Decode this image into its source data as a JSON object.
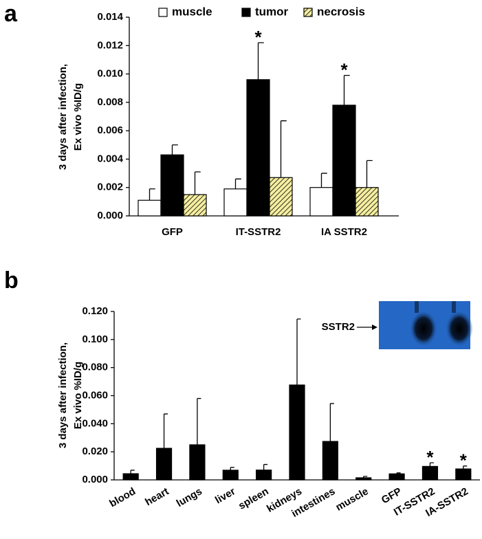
{
  "chart_data": [
    {
      "type": "bar",
      "panel_label": "a",
      "ylabel": [
        "3 days after infection,",
        "Ex vivo %ID/g"
      ],
      "categories": [
        "GFP",
        "IT-SSTR2",
        "IA SSTR2"
      ],
      "series": [
        {
          "name": "muscle",
          "color": "#ffffff",
          "values": [
            0.0011,
            0.0019,
            0.002
          ],
          "errors": [
            0.0008,
            0.0007,
            0.001
          ]
        },
        {
          "name": "tumor",
          "color": "#000000",
          "values": [
            0.0043,
            0.0096,
            0.0078
          ],
          "errors": [
            0.0007,
            0.0026,
            0.0021
          ]
        },
        {
          "name": "necrosis",
          "color": "#f5eea0",
          "hatch": true,
          "values": [
            0.0015,
            0.0027,
            0.002
          ],
          "errors": [
            0.0016,
            0.004,
            0.0019
          ]
        }
      ],
      "ylim": [
        0,
        0.014
      ],
      "yticks": [
        {
          "value": 0,
          "label": "0.000"
        },
        {
          "value": 0.002,
          "label": "0.002"
        },
        {
          "value": 0.004,
          "label": "0.004"
        },
        {
          "value": 0.006,
          "label": "0.006"
        },
        {
          "value": 0.008,
          "label": "0.008"
        },
        {
          "value": 0.01,
          "label": "0.010"
        },
        {
          "value": 0.012,
          "label": "0.012"
        },
        {
          "value": 0.014,
          "label": "0.014"
        }
      ],
      "legend": "top",
      "annotations": [
        {
          "text": "*",
          "category": "IT-SSTR2",
          "series": "tumor"
        },
        {
          "text": "*",
          "category": "IA SSTR2",
          "series": "tumor"
        }
      ]
    },
    {
      "type": "bar",
      "panel_label": "b",
      "ylabel": [
        "3 days after infection,",
        "Ex vivo %ID/g"
      ],
      "categories": [
        "blood",
        "heart",
        "lungs",
        "liver",
        "spleen",
        "kidneys",
        "intestines",
        "muscle",
        "GFP",
        "IT-SSTR2",
        "IA-SSTR2"
      ],
      "color": "#000000",
      "values": [
        0.0044,
        0.0225,
        0.025,
        0.0069,
        0.007,
        0.0676,
        0.0274,
        0.0015,
        0.0043,
        0.0096,
        0.0078
      ],
      "errors": [
        0.0025,
        0.0245,
        0.033,
        0.002,
        0.004,
        0.047,
        0.027,
        0.001,
        0.0007,
        0.0026,
        0.0021
      ],
      "ylim": [
        0,
        0.12
      ],
      "yticks": [
        {
          "value": 0,
          "label": "0.000"
        },
        {
          "value": 0.02,
          "label": "0.020"
        },
        {
          "value": 0.04,
          "label": "0.040"
        },
        {
          "value": 0.06,
          "label": "0.060"
        },
        {
          "value": 0.08,
          "label": "0.080"
        },
        {
          "value": 0.1,
          "label": "0.100"
        },
        {
          "value": 0.12,
          "label": "0.120"
        }
      ],
      "inset_label": "SSTR2",
      "annotations": [
        {
          "text": "*",
          "category": "IT-SSTR2"
        },
        {
          "text": "*",
          "category": "IA-SSTR2"
        }
      ]
    }
  ]
}
